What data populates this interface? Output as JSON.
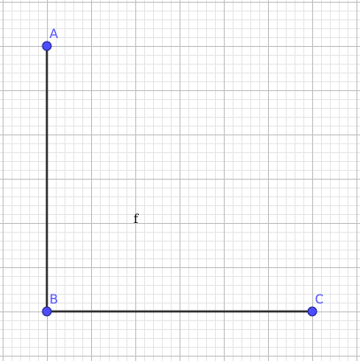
{
  "grid": {
    "minor_color": "#e6e6e6",
    "major_color": "#c0c0c0"
  },
  "style": {
    "segment_color": "#333333",
    "point_fill": "#4d4dff",
    "point_stroke": "#1f1f8f",
    "label_color": "#4d4dff",
    "object_label_color": "#000000"
  },
  "points": [
    {
      "id": "A",
      "label": "A"
    },
    {
      "id": "B",
      "label": "B"
    },
    {
      "id": "C",
      "label": "C"
    }
  ],
  "segments": [
    {
      "from": "A",
      "to": "B"
    },
    {
      "from": "B",
      "to": "C"
    }
  ],
  "object_label": {
    "text": "f"
  }
}
